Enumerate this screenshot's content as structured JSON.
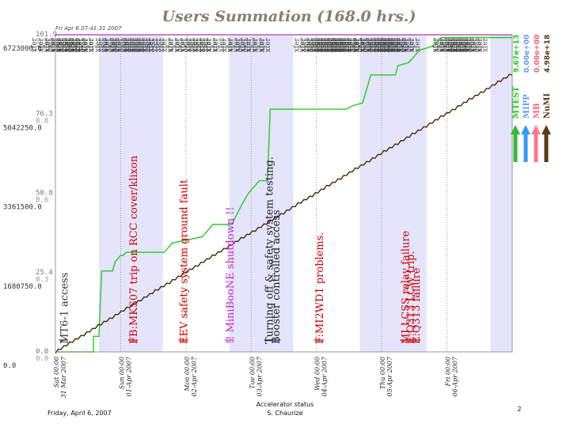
{
  "chart_data": {
    "type": "line",
    "title": "Users Summation (168.0 hrs.)",
    "subtitle": "Fri Apr 6 07:41:31 2007",
    "x_range_hours": [
      0,
      168
    ],
    "y_right": {
      "ticks": [
        "6723000.0",
        "5042250.0",
        "3361500.0",
        "1680750.0",
        "0.0"
      ],
      "values": [
        6723000,
        5042250,
        3361500,
        1680750,
        0
      ]
    },
    "y_left1": {
      "ticks": [
        "101.9",
        "76.3",
        "50.8",
        "25.4",
        "0.0"
      ]
    },
    "y_left2": {
      "ticks": [
        "1.1",
        "0.8",
        "0.6",
        "0.3",
        "0.0"
      ]
    },
    "x_ticks": [
      {
        "hour": 0,
        "lines": [
          "Sat 00:00",
          "31 Mar 2007"
        ]
      },
      {
        "hour": 24,
        "lines": [
          "Sun 00:00",
          "01-Apr 2007"
        ]
      },
      {
        "hour": 48,
        "lines": [
          "Mon 00:00",
          "02-Apr 2007"
        ]
      },
      {
        "hour": 72,
        "lines": [
          "Tue 00:00",
          "03-Apr 2007"
        ]
      },
      {
        "hour": 96,
        "lines": [
          "Wed 00:00",
          "04-Apr 2007"
        ]
      },
      {
        "hour": 120,
        "lines": [
          "Thu 00:00",
          "05-Apr 2007"
        ]
      },
      {
        "hour": 144,
        "lines": [
          "Fri 00:00",
          "06-Apr 2007"
        ]
      }
    ],
    "shaded_hours": [
      [
        16,
        39.5
      ],
      [
        64,
        87.5
      ],
      [
        112,
        136.5
      ],
      [
        160,
        168
      ]
    ],
    "series": [
      {
        "name": "MTEST",
        "color": "#22cc22",
        "points": [
          [
            0,
            0
          ],
          [
            14,
            0
          ],
          [
            14,
            5
          ],
          [
            16,
            5
          ],
          [
            17,
            26
          ],
          [
            21,
            26
          ],
          [
            22,
            29
          ],
          [
            23,
            30
          ],
          [
            24,
            31
          ],
          [
            25,
            31
          ],
          [
            26,
            32
          ],
          [
            40,
            32
          ],
          [
            43,
            35
          ],
          [
            54,
            37
          ],
          [
            58,
            41
          ],
          [
            65,
            41
          ],
          [
            66,
            43
          ],
          [
            69,
            48
          ],
          [
            71,
            51
          ],
          [
            73,
            53
          ],
          [
            75,
            55
          ],
          [
            78,
            55
          ],
          [
            79,
            78
          ],
          [
            107,
            78
          ],
          [
            109,
            79
          ],
          [
            113,
            80
          ],
          [
            116,
            89
          ],
          [
            125,
            89
          ],
          [
            126,
            92
          ],
          [
            130,
            93
          ],
          [
            134,
            97
          ],
          [
            138,
            98
          ],
          [
            140,
            99
          ],
          [
            142,
            101
          ],
          [
            168,
            101
          ]
        ]
      },
      {
        "name": "MIPP",
        "color": "#ff66ff",
        "points": [
          [
            0,
            1.1
          ],
          [
            168,
            1.1
          ]
        ]
      },
      {
        "name": "NuMI",
        "color": "#4a2a00",
        "points": [
          [
            0,
            0
          ],
          [
            168,
            5900000
          ]
        ]
      }
    ],
    "xfer_markers": [
      {
        "hour": 4.5,
        "count": 6
      },
      {
        "hour": 7,
        "count": 6
      },
      {
        "hour": 9,
        "count": 6
      },
      {
        "hour": 11,
        "count": 6
      },
      {
        "hour": 13,
        "count": 6
      },
      {
        "hour": 18,
        "count": 6
      },
      {
        "hour": 21.5,
        "count": 3
      },
      {
        "hour": 31,
        "count": 6
      },
      {
        "hour": 33,
        "count": 6
      },
      {
        "hour": 35,
        "count": 6
      },
      {
        "hour": 39,
        "count": 6
      },
      {
        "hour": 45,
        "count": 5
      },
      {
        "hour": 47,
        "count": 3
      },
      {
        "hour": 55,
        "count": 3
      },
      {
        "hour": 59,
        "count": 6
      },
      {
        "hour": 61,
        "count": 6
      },
      {
        "hour": 67,
        "count": 3
      },
      {
        "hour": 69,
        "count": 3
      },
      {
        "hour": 76,
        "count": 4
      },
      {
        "hour": 78,
        "count": 4
      },
      {
        "hour": 101,
        "count": 6
      },
      {
        "hour": 103,
        "count": 6
      },
      {
        "hour": 105,
        "count": 6
      },
      {
        "hour": 107,
        "count": 6
      },
      {
        "hour": 109,
        "count": 6
      },
      {
        "hour": 111,
        "count": 6
      },
      {
        "hour": 113,
        "count": 6
      },
      {
        "hour": 115,
        "count": 6
      },
      {
        "hour": 123,
        "count": 6
      },
      {
        "hour": 125,
        "count": 6
      },
      {
        "hour": 127,
        "count": 6
      },
      {
        "hour": 129,
        "count": 6
      },
      {
        "hour": 131,
        "count": 6
      },
      {
        "hour": 133,
        "count": 6
      },
      {
        "hour": 150,
        "count": 5
      },
      {
        "hour": 152,
        "count": 6
      },
      {
        "hour": 154,
        "count": 6
      },
      {
        "hour": 156,
        "count": 6
      },
      {
        "hour": 158,
        "count": 6
      }
    ],
    "xfer_label": "xfer",
    "annotations": [
      {
        "hour": 3,
        "text": "MT6-1 access",
        "color": "#333333"
      },
      {
        "hour": 28.5,
        "text": "FB:MKS07 trip on RCC cover/klixon",
        "color": "#cc0000"
      },
      {
        "hour": 47,
        "text": "EEV safety system ground fault",
        "color": "#cc0000"
      },
      {
        "hour": 64,
        "text": "!! MiniBooNE shutdown !!",
        "color": "#cc22cc"
      },
      {
        "hour": 78.5,
        "text": "Turning off & safety system testing.",
        "color": "#222222"
      },
      {
        "hour": 81,
        "text": "Booster controlled access",
        "color": "#222222"
      },
      {
        "hour": 97,
        "text": "F:MI2WD1 problems.",
        "color": "#cc0000"
      },
      {
        "hour": 128.5,
        "text": "MI LCSS relay failure",
        "color": "#cc0000"
      },
      {
        "hour": 130.5,
        "text": "E:Q313 LCW trip.",
        "color": "#cc0000"
      },
      {
        "hour": 132.5,
        "text": "E:Q313 failure",
        "color": "#cc0000"
      }
    ],
    "legend": [
      {
        "name": "MTEST",
        "value": "9.67e+13",
        "color": "#22cc22",
        "arrow": "#33bb33"
      },
      {
        "name": "MIPP",
        "value": "0.00e+00",
        "color": "#6699ee",
        "arrow": "#3399ff"
      },
      {
        "name": "MB",
        "value": "0.00e+00",
        "color": "#ee6677",
        "arrow": "#ff7788"
      },
      {
        "name": "NuMI",
        "value": "4.98e+18",
        "color": "#5a3a10",
        "arrow": "#5a3a10"
      }
    ]
  },
  "footer": {
    "date": "Friday, April 6, 2007",
    "center_line1": "Accelerator status",
    "center_line2": "S. Chaurize",
    "page": "2"
  }
}
